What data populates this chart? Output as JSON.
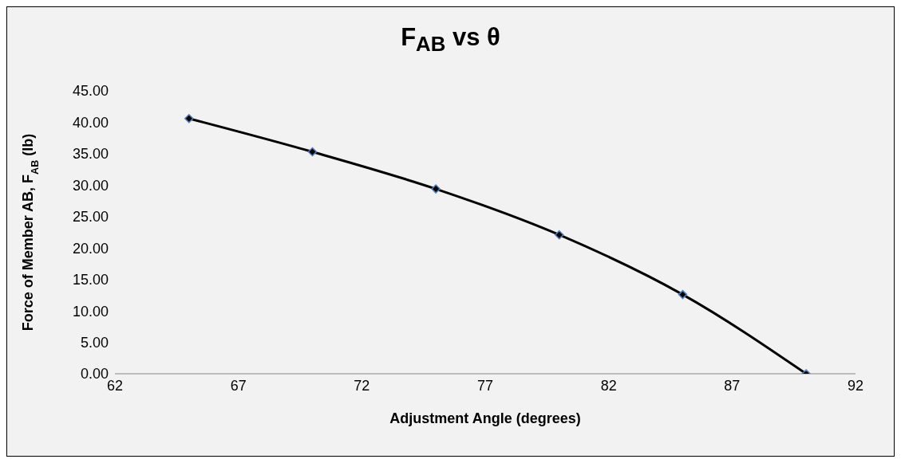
{
  "chart_data": {
    "type": "line",
    "title": "F$_{AB}$ vs θ",
    "xlabel": "Adjustment Angle (degrees)",
    "ylabel": "Force of Member AB, F$_{AB}$ (lb)",
    "x": [
      65,
      70,
      75,
      80,
      85,
      90
    ],
    "series": [
      {
        "color": "#000000",
        "values": [
          40.6,
          35.3,
          29.4,
          22.1,
          12.6,
          0.0
        ]
      }
    ],
    "xlim": [
      62,
      92
    ],
    "xticks": [
      62,
      67,
      72,
      77,
      82,
      87,
      92
    ],
    "ylim": [
      0,
      45
    ],
    "yticks": [
      {
        "value": 0,
        "label": "0.00"
      },
      {
        "value": 5,
        "label": "5.00"
      },
      {
        "value": 10,
        "label": "10.00"
      },
      {
        "value": 15,
        "label": "15.00"
      },
      {
        "value": 20,
        "label": "20.00"
      },
      {
        "value": 25,
        "label": "25.00"
      },
      {
        "value": 30,
        "label": "30.00"
      },
      {
        "value": 35,
        "label": "35.00"
      },
      {
        "value": 40,
        "label": "40.00"
      },
      {
        "value": 45,
        "label": "45.00"
      }
    ],
    "grid": false,
    "legend": false,
    "marker": "diamond",
    "line_style": "solid"
  }
}
